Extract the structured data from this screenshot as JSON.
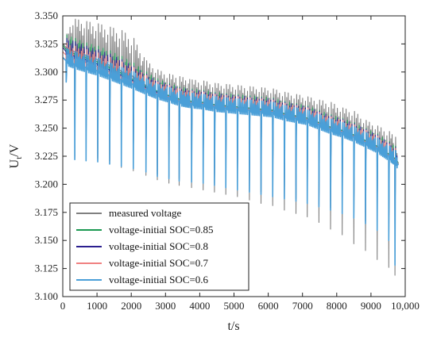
{
  "chart_data": {
    "type": "line",
    "title": "",
    "xlabel": "t/s",
    "ylabel_main": "U",
    "ylabel_sub": "t",
    "ylabel_suffix": "/V",
    "xlim": [
      0,
      10000
    ],
    "ylim": [
      3.1,
      3.35
    ],
    "x_ticks": [
      0,
      1000,
      2000,
      3000,
      4000,
      5000,
      6000,
      7000,
      8000,
      9000,
      10000
    ],
    "x_tick_labels": [
      "0",
      "1000",
      "2000",
      "3000",
      "4000",
      "5000",
      "6000",
      "7000",
      "8000",
      "9000",
      "10,000"
    ],
    "y_ticks": [
      3.1,
      3.125,
      3.15,
      3.175,
      3.2,
      3.225,
      3.25,
      3.275,
      3.3,
      3.325,
      3.35
    ],
    "y_tick_labels": [
      "3.100",
      "3.125",
      "3.150",
      "3.175",
      "3.200",
      "3.225",
      "3.250",
      "3.275",
      "3.300",
      "3.325",
      "3.350"
    ],
    "grid": false,
    "legend_position": "bottom-left",
    "pulse_times": [
      100,
      350,
      680,
      1020,
      1370,
      1710,
      2060,
      2430,
      2760,
      3100,
      3400,
      3760,
      4100,
      4430,
      4760,
      5100,
      5450,
      5790,
      6130,
      6470,
      6810,
      7140,
      7480,
      7820,
      8160,
      8500,
      8840,
      9180,
      9520,
      9700
    ],
    "series": [
      {
        "name": "measured voltage",
        "color": "#808080",
        "x": [
          0,
          100,
          350,
          680,
          1020,
          1370,
          1710,
          2060,
          2430,
          2760,
          3100,
          3400,
          3760,
          4100,
          4430,
          4760,
          5100,
          5450,
          5790,
          6130,
          6470,
          6810,
          7140,
          7480,
          7820,
          8160,
          8500,
          8840,
          9180,
          9520,
          9700,
          9800
        ],
        "baseline": [
          3.325,
          3.322,
          3.318,
          3.315,
          3.311,
          3.306,
          3.301,
          3.296,
          3.288,
          3.283,
          3.279,
          3.276,
          3.274,
          3.273,
          3.271,
          3.27,
          3.269,
          3.268,
          3.267,
          3.266,
          3.263,
          3.261,
          3.259,
          3.255,
          3.251,
          3.248,
          3.244,
          3.239,
          3.234,
          3.226,
          3.222,
          3.218
        ],
        "peaks": [
          3.336,
          3.334,
          3.347,
          3.345,
          3.343,
          3.34,
          3.337,
          3.33,
          3.31,
          3.302,
          3.298,
          3.296,
          3.293,
          3.292,
          3.29,
          3.289,
          3.288,
          3.287,
          3.286,
          3.285,
          3.282,
          3.28,
          3.278,
          3.275,
          3.273,
          3.268,
          3.265,
          3.257,
          3.252,
          3.247,
          3.242,
          3.221
        ],
        "troughs": [
          3.322,
          3.293,
          3.223,
          3.222,
          3.221,
          3.218,
          3.215,
          3.212,
          3.208,
          3.204,
          3.201,
          3.199,
          3.197,
          3.195,
          3.193,
          3.191,
          3.189,
          3.186,
          3.183,
          3.181,
          3.177,
          3.174,
          3.171,
          3.166,
          3.16,
          3.155,
          3.147,
          3.141,
          3.133,
          3.126,
          3.119,
          3.2
        ]
      },
      {
        "name": "voltage-initial SOC=0.85",
        "color": "#1a9850",
        "x": [
          0,
          100,
          350,
          680,
          1020,
          1370,
          1710,
          2060,
          2430,
          2760,
          3100,
          3400,
          3760,
          4100,
          4430,
          4760,
          5100,
          5450,
          5790,
          6130,
          6470,
          6810,
          7140,
          7480,
          7820,
          8160,
          8500,
          8840,
          9180,
          9520,
          9700,
          9800
        ],
        "baseline": [
          3.324,
          3.32,
          3.316,
          3.313,
          3.309,
          3.304,
          3.299,
          3.293,
          3.287,
          3.283,
          3.279,
          3.276,
          3.274,
          3.273,
          3.271,
          3.27,
          3.269,
          3.268,
          3.267,
          3.266,
          3.263,
          3.261,
          3.259,
          3.255,
          3.251,
          3.248,
          3.244,
          3.239,
          3.234,
          3.227,
          3.223,
          3.219
        ],
        "peaks": [
          3.334,
          3.333,
          3.33,
          3.326,
          3.323,
          3.319,
          3.314,
          3.308,
          3.3,
          3.294,
          3.29,
          3.287,
          3.285,
          3.284,
          3.282,
          3.281,
          3.28,
          3.279,
          3.278,
          3.277,
          3.274,
          3.272,
          3.27,
          3.266,
          3.262,
          3.259,
          3.255,
          3.25,
          3.245,
          3.238,
          3.234,
          3.222
        ],
        "troughs": [
          3.322,
          3.295,
          3.225,
          3.224,
          3.223,
          3.221,
          3.219,
          3.216,
          3.213,
          3.209,
          3.207,
          3.205,
          3.204,
          3.203,
          3.201,
          3.199,
          3.197,
          3.195,
          3.193,
          3.191,
          3.189,
          3.187,
          3.185,
          3.182,
          3.179,
          3.176,
          3.172,
          3.167,
          3.161,
          3.152,
          3.14,
          3.203
        ]
      },
      {
        "name": "voltage-initial SOC=0.8",
        "color": "#2b1f8f",
        "x": [
          0,
          100,
          350,
          680,
          1020,
          1370,
          1710,
          2060,
          2430,
          2760,
          3100,
          3400,
          3760,
          4100,
          4430,
          4760,
          5100,
          5450,
          5790,
          6130,
          6470,
          6810,
          7140,
          7480,
          7820,
          8160,
          8500,
          8840,
          9180,
          9520,
          9700,
          9800
        ],
        "baseline": [
          3.322,
          3.318,
          3.314,
          3.311,
          3.307,
          3.302,
          3.297,
          3.292,
          3.286,
          3.282,
          3.278,
          3.275,
          3.273,
          3.272,
          3.27,
          3.269,
          3.268,
          3.267,
          3.266,
          3.265,
          3.262,
          3.26,
          3.258,
          3.254,
          3.25,
          3.247,
          3.243,
          3.238,
          3.233,
          3.226,
          3.222,
          3.218
        ],
        "peaks": [
          3.331,
          3.33,
          3.327,
          3.323,
          3.32,
          3.316,
          3.311,
          3.305,
          3.298,
          3.292,
          3.289,
          3.286,
          3.284,
          3.283,
          3.281,
          3.28,
          3.279,
          3.278,
          3.277,
          3.276,
          3.273,
          3.271,
          3.269,
          3.265,
          3.261,
          3.258,
          3.254,
          3.249,
          3.244,
          3.237,
          3.233,
          3.221
        ],
        "troughs": [
          3.32,
          3.294,
          3.225,
          3.224,
          3.223,
          3.221,
          3.219,
          3.216,
          3.213,
          3.209,
          3.207,
          3.205,
          3.204,
          3.203,
          3.201,
          3.199,
          3.197,
          3.195,
          3.193,
          3.191,
          3.189,
          3.187,
          3.185,
          3.182,
          3.179,
          3.176,
          3.172,
          3.167,
          3.161,
          3.152,
          3.14,
          3.202
        ]
      },
      {
        "name": "voltage-initial SOC=0.7",
        "color": "#f08080",
        "x": [
          0,
          100,
          350,
          680,
          1020,
          1370,
          1710,
          2060,
          2430,
          2760,
          3100,
          3400,
          3760,
          4100,
          4430,
          4760,
          5100,
          5450,
          5790,
          6130,
          6470,
          6810,
          7140,
          7480,
          7820,
          8160,
          8500,
          8840,
          9180,
          9520,
          9700,
          9800
        ],
        "baseline": [
          3.318,
          3.315,
          3.311,
          3.308,
          3.305,
          3.3,
          3.296,
          3.291,
          3.285,
          3.281,
          3.278,
          3.275,
          3.273,
          3.272,
          3.27,
          3.269,
          3.268,
          3.267,
          3.266,
          3.265,
          3.262,
          3.26,
          3.258,
          3.254,
          3.25,
          3.247,
          3.243,
          3.238,
          3.233,
          3.226,
          3.222,
          3.218
        ],
        "peaks": [
          3.327,
          3.326,
          3.323,
          3.32,
          3.317,
          3.313,
          3.309,
          3.304,
          3.297,
          3.291,
          3.288,
          3.285,
          3.283,
          3.282,
          3.28,
          3.279,
          3.278,
          3.277,
          3.276,
          3.275,
          3.272,
          3.27,
          3.268,
          3.264,
          3.26,
          3.257,
          3.253,
          3.248,
          3.243,
          3.236,
          3.232,
          3.22
        ],
        "troughs": [
          3.316,
          3.293,
          3.224,
          3.223,
          3.222,
          3.22,
          3.218,
          3.215,
          3.212,
          3.208,
          3.206,
          3.204,
          3.203,
          3.202,
          3.2,
          3.198,
          3.196,
          3.194,
          3.192,
          3.19,
          3.188,
          3.186,
          3.184,
          3.181,
          3.178,
          3.175,
          3.171,
          3.166,
          3.16,
          3.151,
          3.139,
          3.201
        ]
      },
      {
        "name": "voltage-initial SOC=0.6",
        "color": "#4a9fd8",
        "x": [
          0,
          100,
          350,
          680,
          1020,
          1370,
          1710,
          2060,
          2430,
          2760,
          3100,
          3400,
          3760,
          4100,
          4430,
          4760,
          5100,
          5450,
          5790,
          6130,
          6470,
          6810,
          7140,
          7480,
          7820,
          8160,
          8500,
          8840,
          9180,
          9520,
          9700,
          9800
        ],
        "baseline": [
          3.313,
          3.31,
          3.307,
          3.304,
          3.301,
          3.297,
          3.293,
          3.289,
          3.284,
          3.28,
          3.277,
          3.274,
          3.272,
          3.271,
          3.269,
          3.268,
          3.267,
          3.266,
          3.265,
          3.264,
          3.261,
          3.259,
          3.257,
          3.253,
          3.249,
          3.246,
          3.242,
          3.237,
          3.232,
          3.225,
          3.221,
          3.217
        ],
        "peaks": [
          3.322,
          3.321,
          3.318,
          3.315,
          3.312,
          3.308,
          3.304,
          3.3,
          3.294,
          3.289,
          3.286,
          3.283,
          3.281,
          3.28,
          3.278,
          3.277,
          3.276,
          3.275,
          3.274,
          3.273,
          3.27,
          3.268,
          3.266,
          3.262,
          3.258,
          3.255,
          3.251,
          3.246,
          3.241,
          3.234,
          3.23,
          3.219
        ],
        "troughs": [
          3.309,
          3.291,
          3.222,
          3.221,
          3.22,
          3.218,
          3.216,
          3.214,
          3.211,
          3.207,
          3.205,
          3.203,
          3.202,
          3.201,
          3.199,
          3.197,
          3.195,
          3.193,
          3.191,
          3.189,
          3.187,
          3.185,
          3.183,
          3.18,
          3.177,
          3.174,
          3.17,
          3.165,
          3.159,
          3.15,
          3.128,
          3.2
        ]
      }
    ]
  }
}
